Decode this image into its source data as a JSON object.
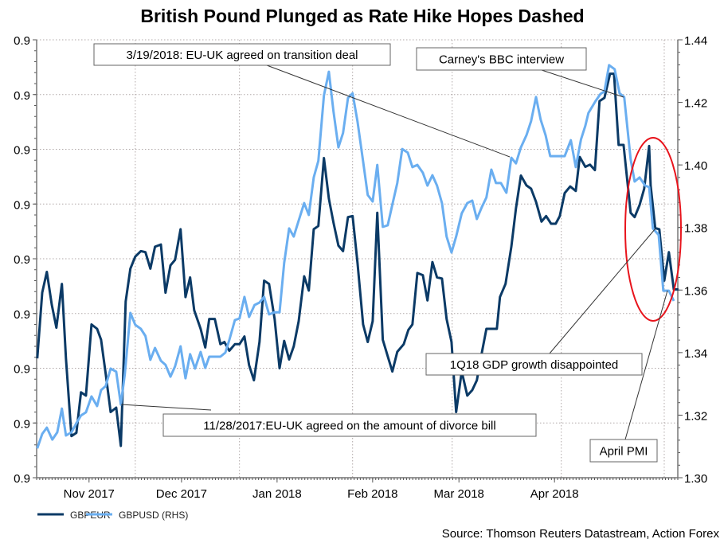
{
  "chart_data": {
    "type": "line",
    "title": "British Pound Plunged as Rate Hike Hopes Dashed",
    "source": "Source: Thomson Reuters Datastream, Action Forex",
    "x_unit": "days since 2017-11-01",
    "xlim": [
      -17,
      191
    ],
    "x_ticks": [
      {
        "day": 0,
        "label": "Nov 2017"
      },
      {
        "day": 30,
        "label": "Dec 2017"
      },
      {
        "day": 61,
        "label": "Jan 2018"
      },
      {
        "day": 92,
        "label": "Feb 2018"
      },
      {
        "day": 120,
        "label": "Mar 2018"
      },
      {
        "day": 151,
        "label": "Apr 2018"
      }
    ],
    "x_gridlines": [
      15,
      48.8,
      85.5,
      117.8,
      153.2,
      186.6
    ],
    "left_axis": {
      "ylim": [
        0.86,
        0.9
      ],
      "ticks": [
        0.9,
        0.895,
        0.89,
        0.885,
        0.88,
        0.875,
        0.87,
        0.865,
        0.86
      ],
      "labels": [
        "0.9",
        "0.9",
        "0.9",
        "0.9",
        "0.9",
        "0.9",
        "0.9",
        "0.9",
        "0.9"
      ]
    },
    "right_axis": {
      "ylim": [
        1.3,
        1.44
      ],
      "ticks": [
        1.44,
        1.42,
        1.4,
        1.38,
        1.36,
        1.34,
        1.32,
        1.3
      ],
      "labels": [
        "1.44",
        "1.42",
        "1.40",
        "1.38",
        "1.36",
        "1.34",
        "1.32",
        "1.30"
      ]
    },
    "grid": true,
    "legend_position": "bottom-left",
    "series": [
      {
        "name": "GBPEUR",
        "axis": "left",
        "color": "#0b3a66",
        "x": [
          -16.8,
          -15.2,
          -13.7,
          -12.1,
          -10.6,
          -8.8,
          -7.5,
          -5.7,
          -4.1,
          -2.6,
          -1.0,
          0.8,
          2.6,
          3.9,
          5.4,
          7.0,
          8.8,
          10.3,
          11.9,
          13.4,
          15.0,
          16.8,
          18.3,
          19.9,
          21.4,
          23.3,
          24.8,
          26.4,
          27.9,
          29.7,
          31.3,
          32.8,
          34.1,
          36.2,
          37.7,
          39.0,
          40.8,
          42.6,
          43.9,
          45.5,
          47.3,
          48.8,
          50.4,
          51.9,
          53.5,
          55.3,
          56.8,
          58.4,
          60.2,
          61.8,
          63.3,
          64.9,
          66.4,
          68.0,
          69.8,
          71.3,
          72.9,
          74.4,
          76.2,
          77.8,
          79.3,
          80.9,
          82.4,
          84.0,
          85.5,
          87.1,
          88.9,
          90.4,
          92.0,
          93.5,
          95.3,
          96.9,
          98.4,
          100.0,
          102.1,
          103.6,
          104.9,
          106.5,
          108.3,
          109.8,
          111.4,
          112.9,
          114.5,
          116.0,
          117.6,
          119.1,
          120.9,
          122.7,
          124.3,
          125.8,
          127.4,
          128.9,
          132.3,
          133.3,
          135.1,
          137.0,
          138.5,
          140.1,
          141.9,
          143.4,
          145.0,
          146.8,
          148.3,
          149.9,
          151.4,
          152.7,
          154.3,
          156.1,
          157.9,
          159.2,
          161.0,
          162.5,
          164.1,
          165.6,
          167.2,
          169.0,
          170.3,
          171.8,
          173.4,
          175.7,
          177.0,
          178.6,
          180.1,
          181.7,
          182.2,
          183.7,
          185.0,
          186.6,
          188.1,
          189.7,
          191.2
        ],
        "values": [
          0.8709,
          0.8769,
          0.8788,
          0.8758,
          0.8737,
          0.8777,
          0.8709,
          0.8638,
          0.8641,
          0.8678,
          0.8675,
          0.874,
          0.8736,
          0.8726,
          0.8695,
          0.866,
          0.8664,
          0.8629,
          0.8761,
          0.8791,
          0.8802,
          0.8807,
          0.8806,
          0.8791,
          0.8811,
          0.8813,
          0.8769,
          0.8794,
          0.8799,
          0.8827,
          0.8765,
          0.8783,
          0.8753,
          0.8736,
          0.8719,
          0.8745,
          0.8745,
          0.8722,
          0.8724,
          0.8716,
          0.8722,
          0.8722,
          0.8729,
          0.8703,
          0.8689,
          0.8724,
          0.878,
          0.8777,
          0.8745,
          0.87,
          0.8725,
          0.8708,
          0.872,
          0.8743,
          0.8784,
          0.8771,
          0.8827,
          0.883,
          0.8892,
          0.8855,
          0.8833,
          0.8812,
          0.8807,
          0.8838,
          0.8839,
          0.8796,
          0.874,
          0.8724,
          0.8743,
          0.8842,
          0.8726,
          0.8711,
          0.8697,
          0.8715,
          0.8722,
          0.8735,
          0.874,
          0.8787,
          0.8785,
          0.8762,
          0.8797,
          0.8783,
          0.8782,
          0.8745,
          0.8724,
          0.866,
          0.8697,
          0.8675,
          0.868,
          0.8689,
          0.8714,
          0.8736,
          0.8736,
          0.8765,
          0.8777,
          0.8811,
          0.8846,
          0.8876,
          0.8867,
          0.8864,
          0.8852,
          0.8834,
          0.8839,
          0.8832,
          0.8832,
          0.8839,
          0.886,
          0.8866,
          0.8862,
          0.8893,
          0.8884,
          0.8886,
          0.8881,
          0.8944,
          0.8947,
          0.8969,
          0.8969,
          0.8904,
          0.8904,
          0.8842,
          0.8838,
          0.8849,
          0.8864,
          0.8903,
          0.8867,
          0.8828,
          0.8827,
          0.878,
          0.8806,
          0.8772,
          0.8772
        ]
      },
      {
        "name": "GBPUSD (RHS)",
        "axis": "right",
        "color": "#6aaef0",
        "x": [
          -16.8,
          -15.2,
          -13.7,
          -11.9,
          -10.3,
          -8.8,
          -7.5,
          -5.7,
          -3.9,
          -2.6,
          -1.0,
          0.8,
          2.6,
          3.9,
          5.4,
          7.0,
          8.8,
          10.3,
          11.6,
          13.4,
          15.0,
          16.8,
          18.3,
          19.9,
          21.4,
          23.3,
          24.8,
          26.4,
          27.9,
          29.7,
          31.3,
          32.8,
          34.4,
          36.2,
          37.7,
          39.0,
          40.8,
          42.6,
          44.2,
          45.5,
          47.3,
          48.8,
          50.4,
          51.9,
          53.7,
          55.3,
          56.8,
          58.4,
          60.2,
          61.8,
          63.3,
          64.9,
          66.4,
          68.0,
          69.8,
          71.3,
          72.9,
          74.4,
          76.2,
          77.8,
          79.3,
          80.9,
          82.4,
          84.0,
          85.5,
          87.1,
          88.9,
          90.4,
          92.0,
          93.5,
          95.3,
          96.9,
          98.4,
          100.0,
          101.6,
          103.4,
          104.9,
          106.5,
          108.3,
          109.8,
          111.4,
          112.9,
          114.5,
          116.0,
          117.6,
          119.1,
          120.9,
          122.7,
          124.3,
          125.8,
          127.4,
          128.9,
          130.5,
          132.0,
          133.6,
          135.4,
          137.0,
          138.5,
          140.1,
          141.9,
          143.4,
          145.0,
          146.5,
          148.1,
          149.6,
          154.3,
          156.3,
          157.9,
          159.6,
          161.0,
          162.0,
          164.3,
          165.9,
          167.2,
          168.7,
          170.5,
          172.1,
          173.6,
          175.7,
          177.0,
          178.6,
          180.4,
          181.7,
          182.9,
          184.8,
          186.3,
          188.1,
          189.7
        ],
        "values": [
          1.3094,
          1.314,
          1.316,
          1.3122,
          1.3145,
          1.3221,
          1.3135,
          1.3145,
          1.3178,
          1.3199,
          1.3209,
          1.326,
          1.3229,
          1.328,
          1.3293,
          1.3349,
          1.3339,
          1.3234,
          1.3331,
          1.3527,
          1.3489,
          1.3476,
          1.3453,
          1.3377,
          1.3415,
          1.3374,
          1.3361,
          1.3323,
          1.3356,
          1.342,
          1.3318,
          1.3395,
          1.3349,
          1.3402,
          1.3351,
          1.3387,
          1.3387,
          1.3387,
          1.34,
          1.344,
          1.3504,
          1.3509,
          1.3578,
          1.3514,
          1.3552,
          1.356,
          1.3578,
          1.3522,
          1.3529,
          1.3529,
          1.3687,
          1.3797,
          1.3771,
          1.3822,
          1.3878,
          1.384,
          1.396,
          1.4013,
          1.4222,
          1.4298,
          1.4171,
          1.4056,
          1.4102,
          1.4214,
          1.4229,
          1.4138,
          1.4011,
          1.3904,
          1.3883,
          1.4,
          1.3802,
          1.3807,
          1.3873,
          1.3942,
          1.4051,
          1.4039,
          1.3993,
          1.4,
          1.3975,
          1.3934,
          1.3967,
          1.3934,
          1.3878,
          1.3771,
          1.372,
          1.3771,
          1.3845,
          1.3878,
          1.3886,
          1.3827,
          1.3865,
          1.3896,
          1.3985,
          1.3942,
          1.3942,
          1.3911,
          1.4023,
          1.4005,
          1.4056,
          1.4095,
          1.414,
          1.4217,
          1.4145,
          1.4095,
          1.4028,
          1.4028,
          1.4079,
          1.3993,
          1.4082,
          1.4125,
          1.4166,
          1.4204,
          1.4227,
          1.4235,
          1.4319,
          1.4306,
          1.4229,
          1.4217,
          1.4018,
          1.3947,
          1.396,
          1.3934,
          1.3929,
          1.3797,
          1.3776,
          1.3598,
          1.3598,
          1.3565
        ]
      }
    ],
    "annotations": [
      {
        "id": "transition-deal",
        "text": "3/19/2018: EU-UK agreed on transition deal"
      },
      {
        "id": "carney",
        "text": "Carney's BBC interview"
      },
      {
        "id": "divorce-bill",
        "text": "11/28/2017:EU-UK agreed on the amount of divorce bill"
      },
      {
        "id": "gdp",
        "text": "1Q18 GDP growth disappointed"
      },
      {
        "id": "pmi",
        "text": "April PMI"
      }
    ],
    "highlight_color": "#e8141c"
  }
}
